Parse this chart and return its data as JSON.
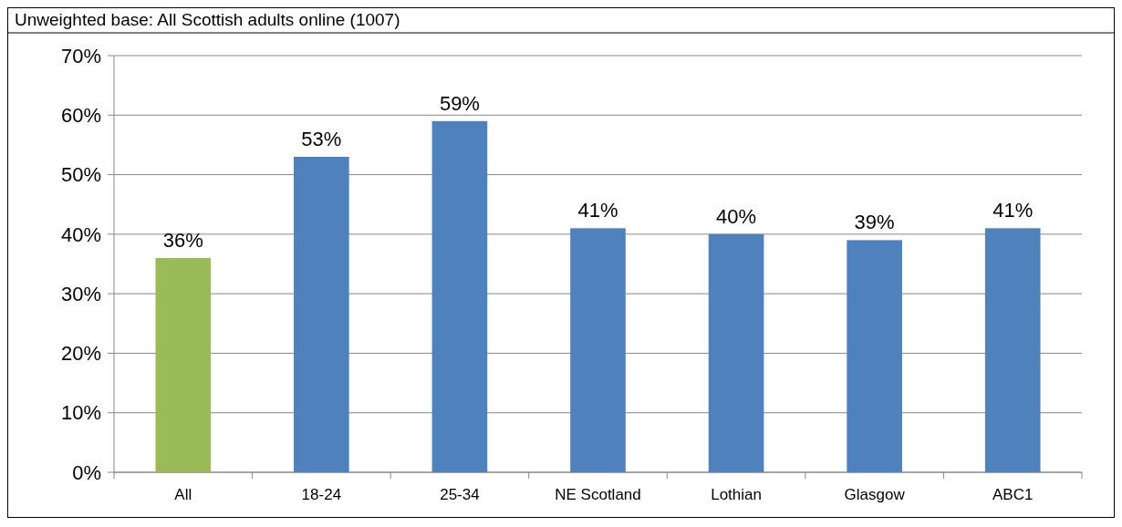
{
  "chart_data": {
    "type": "bar",
    "annotations": [
      "Unweighted base: All Scottish adults online (1007)"
    ],
    "categories": [
      "All",
      "18-24",
      "25-34",
      "NE Scotland",
      "Lothian",
      "Glasgow",
      "ABC1"
    ],
    "values": [
      36,
      53,
      59,
      41,
      40,
      39,
      41
    ],
    "colors": [
      "#9bbb59",
      "#4f81bd",
      "#4f81bd",
      "#4f81bd",
      "#4f81bd",
      "#4f81bd",
      "#4f81bd"
    ],
    "value_labels": [
      "36%",
      "53%",
      "59%",
      "41%",
      "40%",
      "39%",
      "41%"
    ],
    "ylim": [
      0,
      70
    ],
    "yticks": [
      {
        "value": 0,
        "label": "0%"
      },
      {
        "value": 10,
        "label": "10%"
      },
      {
        "value": 20,
        "label": "20%"
      },
      {
        "value": 30,
        "label": "30%"
      },
      {
        "value": 40,
        "label": "40%"
      },
      {
        "value": 50,
        "label": "50%"
      },
      {
        "value": 60,
        "label": "60%"
      },
      {
        "value": 70,
        "label": "70%"
      }
    ],
    "grid": "y"
  }
}
